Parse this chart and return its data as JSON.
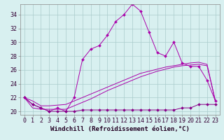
{
  "hours": [
    0,
    1,
    2,
    3,
    4,
    5,
    6,
    7,
    8,
    9,
    10,
    11,
    12,
    13,
    14,
    15,
    16,
    17,
    18,
    19,
    20,
    21,
    22,
    23
  ],
  "temp_line": [
    22,
    21,
    20.5,
    20,
    20.5,
    20,
    22,
    27.5,
    29,
    29.5,
    31,
    33,
    34,
    35.5,
    34.5,
    31.5,
    28.5,
    28,
    30,
    27,
    26.5,
    26.5,
    24.5,
    21.5
  ],
  "windchill_line": [
    22,
    21,
    20.5,
    20,
    20,
    20,
    20,
    20.2,
    20.2,
    20.2,
    20.2,
    20.2,
    20.2,
    20.2,
    20.2,
    20.2,
    20.2,
    20.2,
    20.2,
    20.5,
    20.5,
    21,
    21,
    21
  ],
  "diag_line1": [
    22,
    20.5,
    20.3,
    20.3,
    20.3,
    20.3,
    20.8,
    21.3,
    21.8,
    22.4,
    23.0,
    23.5,
    24.0,
    24.5,
    25.0,
    25.4,
    25.8,
    26.1,
    26.4,
    26.6,
    26.7,
    26.8,
    26.6,
    21.5
  ],
  "diag_line2": [
    22,
    21.5,
    20.8,
    20.8,
    20.9,
    21.0,
    21.5,
    22.0,
    22.5,
    23.0,
    23.5,
    24.0,
    24.5,
    25.0,
    25.5,
    25.8,
    26.1,
    26.4,
    26.6,
    26.8,
    27.0,
    27.1,
    26.8,
    21.5
  ],
  "bg_color": "#d8f0f0",
  "grid_color": "#aacccc",
  "line_color": "#aa00aa",
  "line_color_dark": "#880088",
  "marker": "D",
  "marker_size": 2.0,
  "xlabel": "Windchill (Refroidissement éolien,°C)",
  "ylabel_ticks": [
    20,
    22,
    24,
    26,
    28,
    30,
    32,
    34
  ],
  "xlim": [
    -0.5,
    23.5
  ],
  "ylim": [
    19.5,
    35.5
  ],
  "xlabel_fontsize": 6.5,
  "tick_fontsize": 6.0
}
